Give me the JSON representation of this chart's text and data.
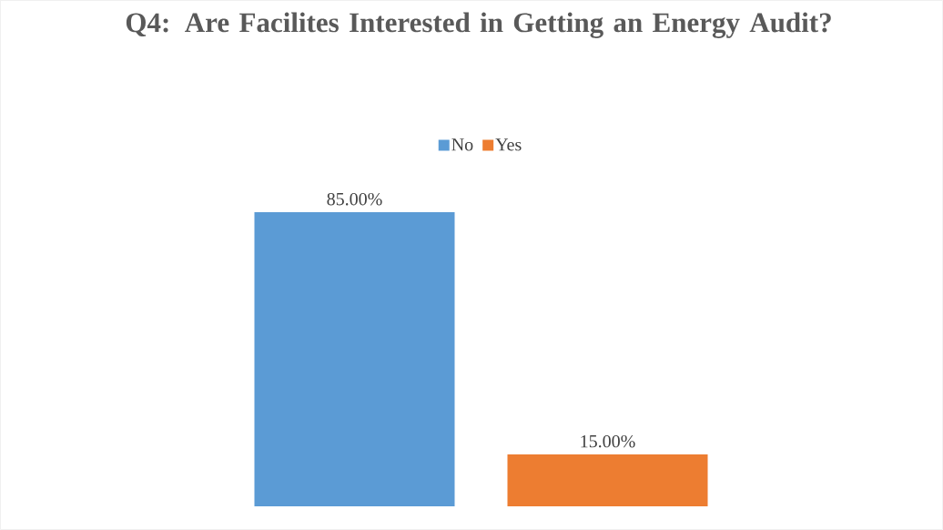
{
  "chart_data": {
    "type": "bar",
    "title": "Q4: Are Facilites Interested in Getting an Energy Audit?",
    "categories": [
      null
    ],
    "series": [
      {
        "name": "No",
        "color": "#5b9bd5",
        "values": [
          85
        ],
        "value_labels": [
          "85.00%"
        ]
      },
      {
        "name": "Yes",
        "color": "#ed7d31",
        "values": [
          15
        ],
        "value_labels": [
          "15.00%"
        ]
      }
    ],
    "legend": "top"
  }
}
